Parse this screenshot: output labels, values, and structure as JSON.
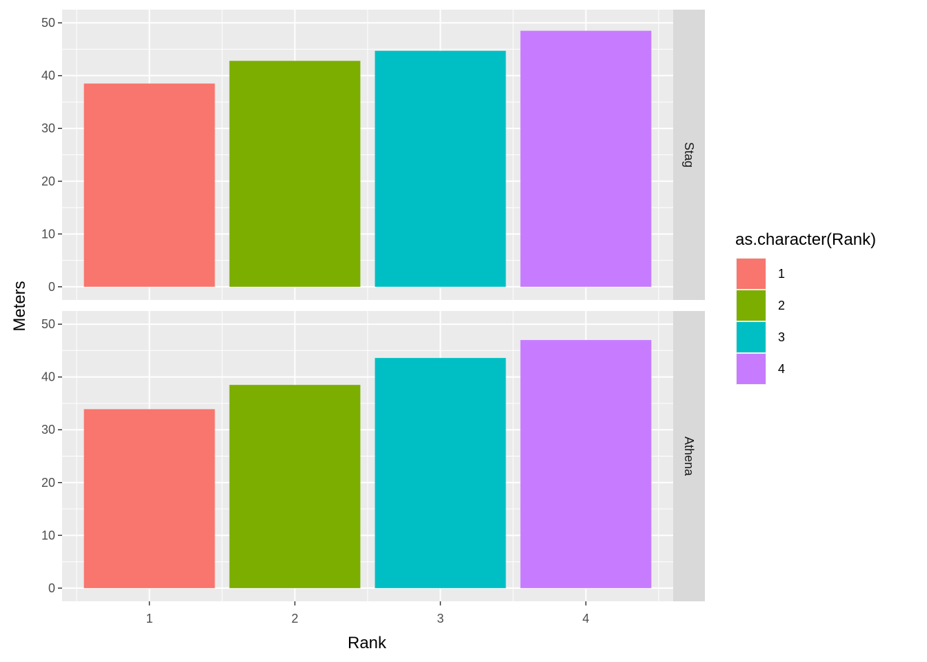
{
  "chart_data": {
    "type": "bar",
    "facet_direction": "rows",
    "strip_position": "right",
    "categories": [
      "1",
      "2",
      "3",
      "4"
    ],
    "panels": [
      {
        "strip": "Stag",
        "values": [
          38.5,
          42.8,
          44.7,
          48.5
        ]
      },
      {
        "strip": "Athena",
        "values": [
          33.9,
          38.5,
          43.6,
          47.0
        ]
      }
    ],
    "xlabel": "Rank",
    "ylabel": "Meters",
    "ylim": [
      0,
      50
    ],
    "yticks": [
      0,
      10,
      20,
      30,
      40,
      50
    ],
    "grid": true,
    "legend": {
      "title": "as.character(Rank)",
      "placement": "right",
      "entries": [
        {
          "label": "1",
          "color": "#F8766D"
        },
        {
          "label": "2",
          "color": "#7CAE00"
        },
        {
          "label": "3",
          "color": "#00BFC4"
        },
        {
          "label": "4",
          "color": "#C77CFF"
        }
      ]
    },
    "colors": {
      "panel_background": "#EBEBEB",
      "strip_background": "#D9D9D9",
      "grid": "#FFFFFF"
    }
  }
}
